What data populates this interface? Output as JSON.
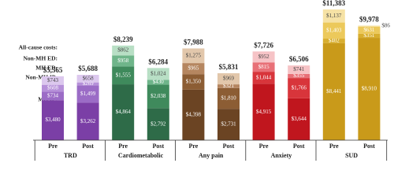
{
  "chart_data": {
    "type": "stacked-bar",
    "groups": [
      "TRD",
      "Cardiometabolic",
      "Any pain",
      "Anxiety",
      "SUD"
    ],
    "categories": [
      "Pre",
      "Post",
      "Pre",
      "Post",
      "Pre",
      "Post",
      "Pre",
      "Post",
      "Pre",
      "Post"
    ],
    "totals_title": "All-cause costs:",
    "totals": [
      5565,
      5688,
      8239,
      6284,
      7988,
      5831,
      7726,
      6506,
      11383,
      9978
    ],
    "total_labels": [
      "$5,565",
      "$5,688",
      "$8,239",
      "$6,284",
      "$7,988",
      "$5,831",
      "$7,726",
      "$6,506",
      "$11,383",
      "$9,978"
    ],
    "series": [
      {
        "name": "MH IP:",
        "colors": [
          "#7b3fa6",
          "#2e6b48",
          "#6b4423",
          "#c0161e",
          "#c99a1a"
        ],
        "values": [
          3480,
          3262,
          4864,
          2792,
          4398,
          2731,
          4915,
          3644,
          8441,
          8910
        ],
        "value_labels": [
          "$3,480",
          "$3,262",
          "$4,864",
          "$2,792",
          "$4,398",
          "$2,731",
          "$4,915",
          "$3,644",
          "$8,441",
          "$8,910"
        ]
      },
      {
        "name": "Non-MH IP:",
        "colors": [
          "#9b6cc6",
          "#3f8a5c",
          "#8c5d34",
          "#d8353b",
          "#d8ae2f"
        ],
        "values": [
          734,
          1499,
          1555,
          2038,
          1350,
          1810,
          1044,
          1766,
          402,
          351
        ],
        "value_labels": [
          "$734",
          "$1,499",
          "$1,555",
          "$2,038",
          "$1,350",
          "$1,810",
          "$1,044",
          "$1,766",
          "$402",
          "$351"
        ]
      },
      {
        "name": "MH ED:",
        "colors": [
          "#b690d9",
          "#6fb58a",
          "#b58660",
          "#e87077",
          "#ecc95b"
        ],
        "values": [
          608,
          269,
          958,
          430,
          965,
          321,
          815,
          355,
          1403,
          631
        ],
        "value_labels": [
          "$608",
          "$269",
          "$958",
          "$430",
          "$965",
          "$321",
          "$815",
          "$355",
          "$1,403",
          "$631"
        ]
      },
      {
        "name": "Non-MH ED:",
        "colors": [
          "#dcc8ee",
          "#b8dfc5",
          "#e2c7ab",
          "#f6c3c6",
          "#f6e2a5"
        ],
        "values": [
          743,
          658,
          862,
          1024,
          1275,
          969,
          952,
          741,
          1137,
          86
        ],
        "value_labels": [
          "$743",
          "$658",
          "$862",
          "$1,024",
          "$1,275",
          "$969",
          "$952",
          "$741",
          "$1,137",
          "$86"
        ]
      }
    ]
  }
}
